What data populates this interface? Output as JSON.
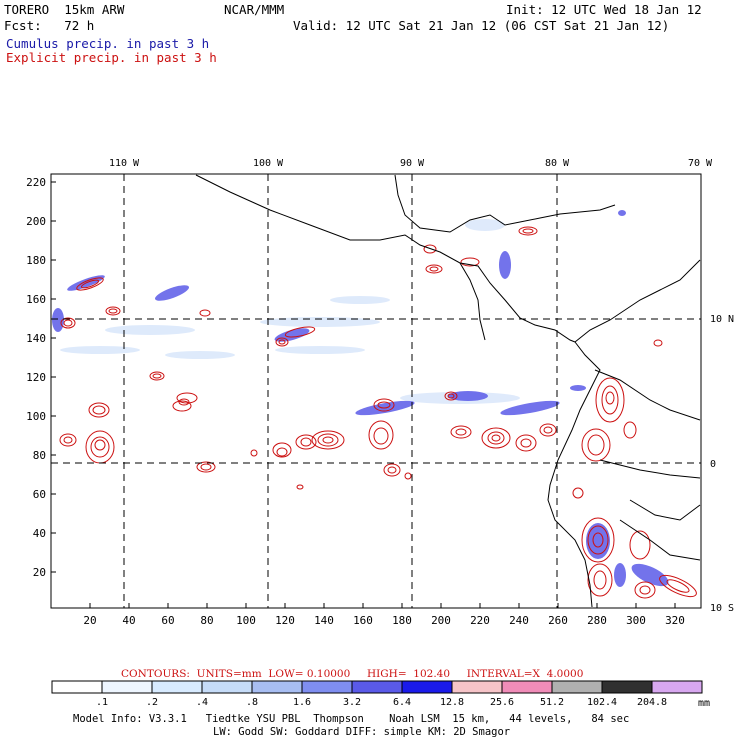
{
  "header": {
    "model": "TORERO  15km ARW",
    "org": "NCAR/MMM",
    "init": "Init: 12 UTC Wed 18 Jan 12",
    "fcst": "Fcst:   72 h",
    "valid": "Valid: 12 UTC Sat 21 Jan 12 (06 CST Sat 21 Jan 12)",
    "line_cumulus": "Cumulus precip. in past 3 h",
    "line_explicit": "Explicit precip. in past 3 h"
  },
  "colors": {
    "cumulus": "#1a1aa8",
    "explicit": "#cc1111",
    "coast": "#000000"
  },
  "map": {
    "lon_labels": [
      "110 W",
      "100 W",
      "90 W",
      "80 W",
      "70 W"
    ],
    "lat_labels": [
      "10 N",
      "0",
      "10 S"
    ],
    "x_ticks": [
      "20",
      "40",
      "60",
      "80",
      "100",
      "120",
      "140",
      "160",
      "180",
      "200",
      "220",
      "240",
      "260",
      "280",
      "300",
      "320"
    ],
    "y_ticks": [
      "20",
      "40",
      "60",
      "80",
      "100",
      "120",
      "140",
      "160",
      "180",
      "200",
      "220"
    ]
  },
  "contour_info": {
    "text": "CONTOURS:  UNITS=mm  LOW= 0.10000     HIGH=  102.40     INTERVAL=X  4.0000"
  },
  "colorbar": {
    "labels": [
      ".1",
      ".2",
      ".4",
      ".8",
      "1.6",
      "3.2",
      "6.4",
      "12.8",
      "25.6",
      "51.2",
      "102.4",
      "204.8"
    ],
    "unit": "mm",
    "colors": [
      "#ffffff",
      "#eef6ff",
      "#d8ebff",
      "#c6dcf8",
      "#a8bef2",
      "#7f8ef0",
      "#5a5ae8",
      "#1a1aea",
      "#f6c4c8",
      "#f08cb8",
      "#b0b0b0",
      "#303030",
      "#d8a8f0"
    ]
  },
  "footer": {
    "line1": "Model Info: V3.3.1   Tiedtke YSU PBL  Thompson    Noah LSM  15 km,   44 levels,   84 sec",
    "line2": "LW: Godd SW: Goddard DIFF: simple KM: 2D Smagor"
  }
}
